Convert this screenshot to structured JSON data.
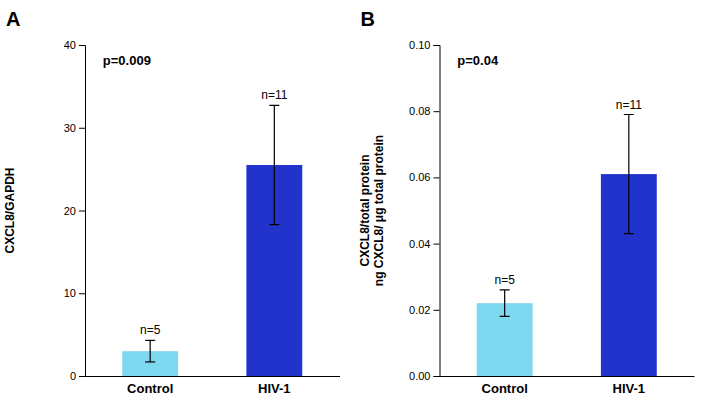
{
  "chart_data": [
    {
      "type": "bar",
      "title": "A",
      "categories": [
        "Control",
        "HIV-1"
      ],
      "values": [
        3.0,
        25.5
      ],
      "errors": [
        1.3,
        7.2
      ],
      "colors": [
        "#7DD8F0",
        "#2233CC"
      ],
      "ylabel": "CXCL8/GAPDH",
      "ylim": [
        0,
        40
      ],
      "yticks": [
        0,
        10,
        20,
        30,
        40
      ],
      "annotations": [
        {
          "text": "p=0.009"
        },
        {
          "text": "n=5",
          "category": "Control"
        },
        {
          "text": "n=11",
          "category": "HIV-1"
        }
      ]
    },
    {
      "type": "bar",
      "title": "B",
      "categories": [
        "Control",
        "HIV-1"
      ],
      "values": [
        0.022,
        0.061
      ],
      "errors": [
        0.004,
        0.018
      ],
      "colors": [
        "#7DD8F0",
        "#2233CC"
      ],
      "ylabel": "CXCL8/total protein\nng CXCL8/ μg total protein",
      "ylim": [
        0,
        0.1
      ],
      "yticks": [
        {
          "value": 0,
          "label": "0.00"
        },
        0.02,
        0.04,
        0.06,
        0.08,
        {
          "value": 0.1,
          "label": "0.10"
        }
      ],
      "annotations": [
        {
          "text": "p=0.04"
        },
        {
          "text": "n=5",
          "category": "Control"
        },
        {
          "text": "n=11",
          "category": "HIV-1"
        }
      ]
    }
  ]
}
